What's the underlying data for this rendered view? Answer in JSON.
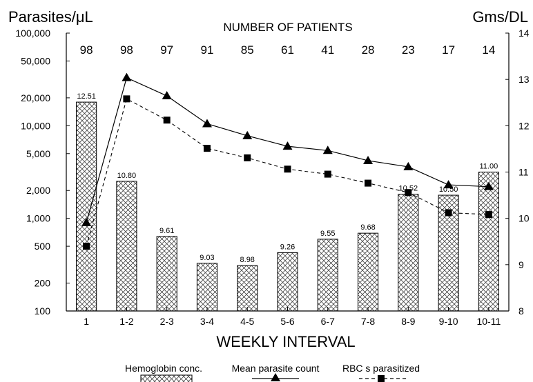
{
  "chart_data": {
    "type": "bar+line",
    "left_axis_label": "Parasites/μL",
    "right_axis_label": "Gms/DL",
    "top_label": "NUMBER OF PATIENTS",
    "xlabel": "WEEKLY INTERVAL",
    "categories": [
      "1",
      "1-2",
      "2-3",
      "3-4",
      "4-5",
      "5-6",
      "6-7",
      "7-8",
      "8-9",
      "9-10",
      "10-11"
    ],
    "patients": [
      "98",
      "98",
      "97",
      "91",
      "85",
      "61",
      "41",
      "28",
      "23",
      "17",
      "14"
    ],
    "left_axis": {
      "scale": "log",
      "ylim": [
        100,
        100000
      ],
      "ticks": [
        100,
        200,
        500,
        1000,
        2000,
        5000,
        10000,
        20000,
        50000,
        100000
      ],
      "tick_labels": [
        "100",
        "200",
        "500",
        "1,000",
        "2,000",
        "5,000",
        "10,000",
        "20,000",
        "50,000",
        "100,000"
      ]
    },
    "right_axis": {
      "scale": "linear",
      "ylim": [
        8,
        14
      ],
      "ticks": [
        8,
        9,
        10,
        11,
        12,
        13,
        14
      ],
      "tick_labels": [
        "8",
        "9",
        "10",
        "11",
        "12",
        "13",
        "14"
      ]
    },
    "series": [
      {
        "name": "Hemoglobin conc.",
        "type": "bar",
        "axis": "right",
        "values": [
          12.51,
          10.8,
          9.61,
          9.03,
          8.98,
          9.26,
          9.55,
          9.68,
          10.52,
          10.5,
          11.0
        ],
        "labels": [
          "12.51",
          "10.80",
          "9.61",
          "9.03",
          "8.98",
          "9.26",
          "9.55",
          "9.68",
          "10.52",
          "10.50",
          "11.00"
        ]
      },
      {
        "name": "Mean parasite count",
        "type": "line",
        "axis": "left",
        "marker": "triangle",
        "line_style": "solid",
        "values": [
          900,
          33000,
          21000,
          10500,
          7800,
          6000,
          5400,
          4200,
          3600,
          2300,
          2200
        ]
      },
      {
        "name": "RBC s parasitized",
        "type": "line",
        "axis": "left",
        "marker": "square",
        "line_style": "dashed",
        "values": [
          500,
          19500,
          11500,
          5700,
          4500,
          3400,
          3000,
          2400,
          1900,
          1150,
          1100
        ]
      }
    ],
    "legend_position": "bottom-center",
    "grid": false
  }
}
